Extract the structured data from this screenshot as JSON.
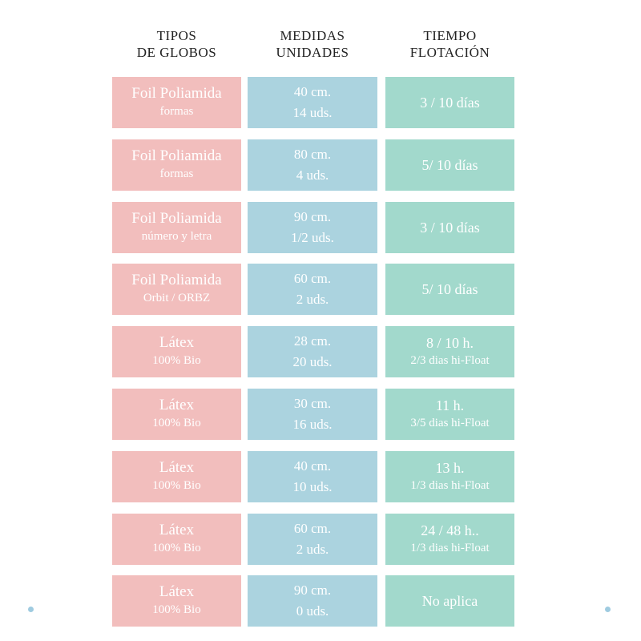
{
  "headers": [
    [
      "TIPOS",
      "DE GLOBOS"
    ],
    [
      "MEDIDAS",
      "UNIDADES"
    ],
    [
      "TIEMPO",
      "FLOTACIÓN"
    ]
  ],
  "rows": [
    [
      [
        "Foil Poliamida",
        "formas"
      ],
      [
        "40 cm.",
        "14 uds."
      ],
      [
        "3 / 10 días"
      ]
    ],
    [
      [
        "Foil Poliamida",
        "formas"
      ],
      [
        "80 cm.",
        "4 uds."
      ],
      [
        "5/ 10 días"
      ]
    ],
    [
      [
        "Foil Poliamida",
        "número y letra"
      ],
      [
        "90 cm.",
        "1/2 uds."
      ],
      [
        "3 / 10 días"
      ]
    ],
    [
      [
        "Foil Poliamida",
        "Orbit / ORBZ"
      ],
      [
        "60 cm.",
        "2 uds."
      ],
      [
        "5/ 10 días"
      ]
    ],
    [
      [
        "Látex",
        "100% Bio"
      ],
      [
        "28 cm.",
        "20 uds."
      ],
      [
        "8 / 10 h.",
        "2/3 dias hi-Float"
      ]
    ],
    [
      [
        "Látex",
        "100% Bio"
      ],
      [
        "30 cm.",
        "16 uds."
      ],
      [
        "11 h.",
        "3/5 dias hi-Float"
      ]
    ],
    [
      [
        "Látex",
        "100% Bio"
      ],
      [
        "40 cm.",
        "10 uds."
      ],
      [
        "13 h.",
        "1/3 dias hi-Float"
      ]
    ],
    [
      [
        "Látex",
        "100% Bio"
      ],
      [
        "60 cm.",
        "2 uds."
      ],
      [
        "24 / 48 h..",
        "1/3 dias hi-Float"
      ]
    ],
    [
      [
        "Látex",
        "100% Bio"
      ],
      [
        "90 cm.",
        "0 uds."
      ],
      [
        "No aplica"
      ]
    ]
  ]
}
